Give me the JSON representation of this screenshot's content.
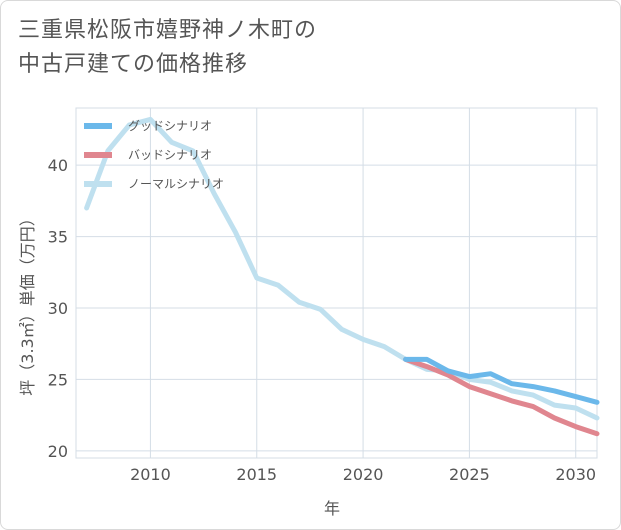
{
  "title_lines": [
    "三重県松阪市嬉野神ノ木町の",
    "中古戸建ての価格推移"
  ],
  "chart_data": {
    "type": "line",
    "xlabel": "年",
    "ylabel": "坪（3.3㎡）単価（万円）",
    "xlim": [
      2006.5,
      2031
    ],
    "ylim": [
      19.5,
      44
    ],
    "xticks": [
      2010,
      2015,
      2020,
      2025,
      2030
    ],
    "yticks": [
      20,
      25,
      30,
      35,
      40
    ],
    "grid": true,
    "legend_position": "top-left",
    "series": [
      {
        "name": "グッドシナリオ",
        "color": "#6bb8ea",
        "x": [
          2022,
          2023,
          2024,
          2025,
          2026,
          2027,
          2028,
          2029,
          2030,
          2031
        ],
        "y": [
          26.4,
          26.4,
          25.6,
          25.2,
          25.4,
          24.7,
          24.5,
          24.2,
          23.8,
          23.4
        ]
      },
      {
        "name": "バッドシナリオ",
        "color": "#e0868f",
        "x": [
          2022,
          2023,
          2024,
          2025,
          2026,
          2027,
          2028,
          2029,
          2030,
          2031
        ],
        "y": [
          26.4,
          25.9,
          25.3,
          24.5,
          24.0,
          23.5,
          23.1,
          22.3,
          21.7,
          21.2
        ]
      },
      {
        "name": "ノーマルシナリオ",
        "color": "#bfe0ef",
        "x": [
          2007,
          2008,
          2009,
          2010,
          2011,
          2012,
          2013,
          2014,
          2015,
          2016,
          2017,
          2018,
          2019,
          2020,
          2021,
          2022,
          2023,
          2024,
          2025,
          2026,
          2027,
          2028,
          2029,
          2030,
          2031
        ],
        "y": [
          37.0,
          41.0,
          42.8,
          43.2,
          41.6,
          41.0,
          38.0,
          35.3,
          32.1,
          31.6,
          30.4,
          29.9,
          28.5,
          27.8,
          27.3,
          26.4,
          25.7,
          25.6,
          25.0,
          24.8,
          24.2,
          23.9,
          23.2,
          23.0,
          22.3
        ]
      }
    ]
  }
}
